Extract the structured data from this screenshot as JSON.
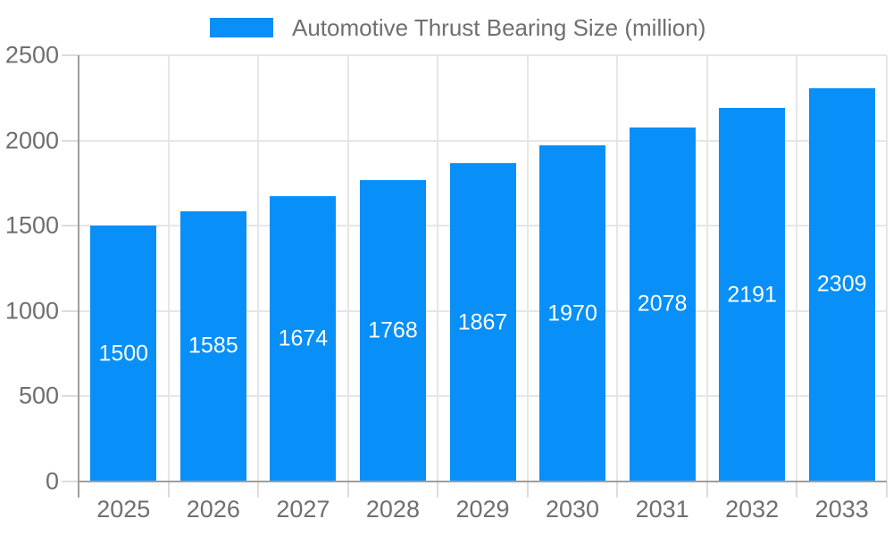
{
  "chart_data": {
    "type": "bar",
    "title": "Automotive Thrust Bearing Size (million)",
    "categories": [
      "2025",
      "2026",
      "2027",
      "2028",
      "2029",
      "2030",
      "2031",
      "2032",
      "2033"
    ],
    "values": [
      1500,
      1585,
      1674,
      1768,
      1867,
      1970,
      2078,
      2191,
      2309
    ],
    "xlabel": "",
    "ylabel": "",
    "ylim": [
      0,
      2500
    ],
    "yticks": [
      0,
      500,
      1000,
      1500,
      2000,
      2500
    ],
    "grid": true,
    "legend_position": "top",
    "bar_labels_inside": true,
    "colors": {
      "bar": "#088ff8",
      "bar_label": "#ffffff",
      "axis_text": "#6f6f6f",
      "grid_line": "#e6e6e6",
      "tick_line": "#dcdcdc",
      "axis_line": "#9e9e9e",
      "background": "#ffffff"
    }
  }
}
